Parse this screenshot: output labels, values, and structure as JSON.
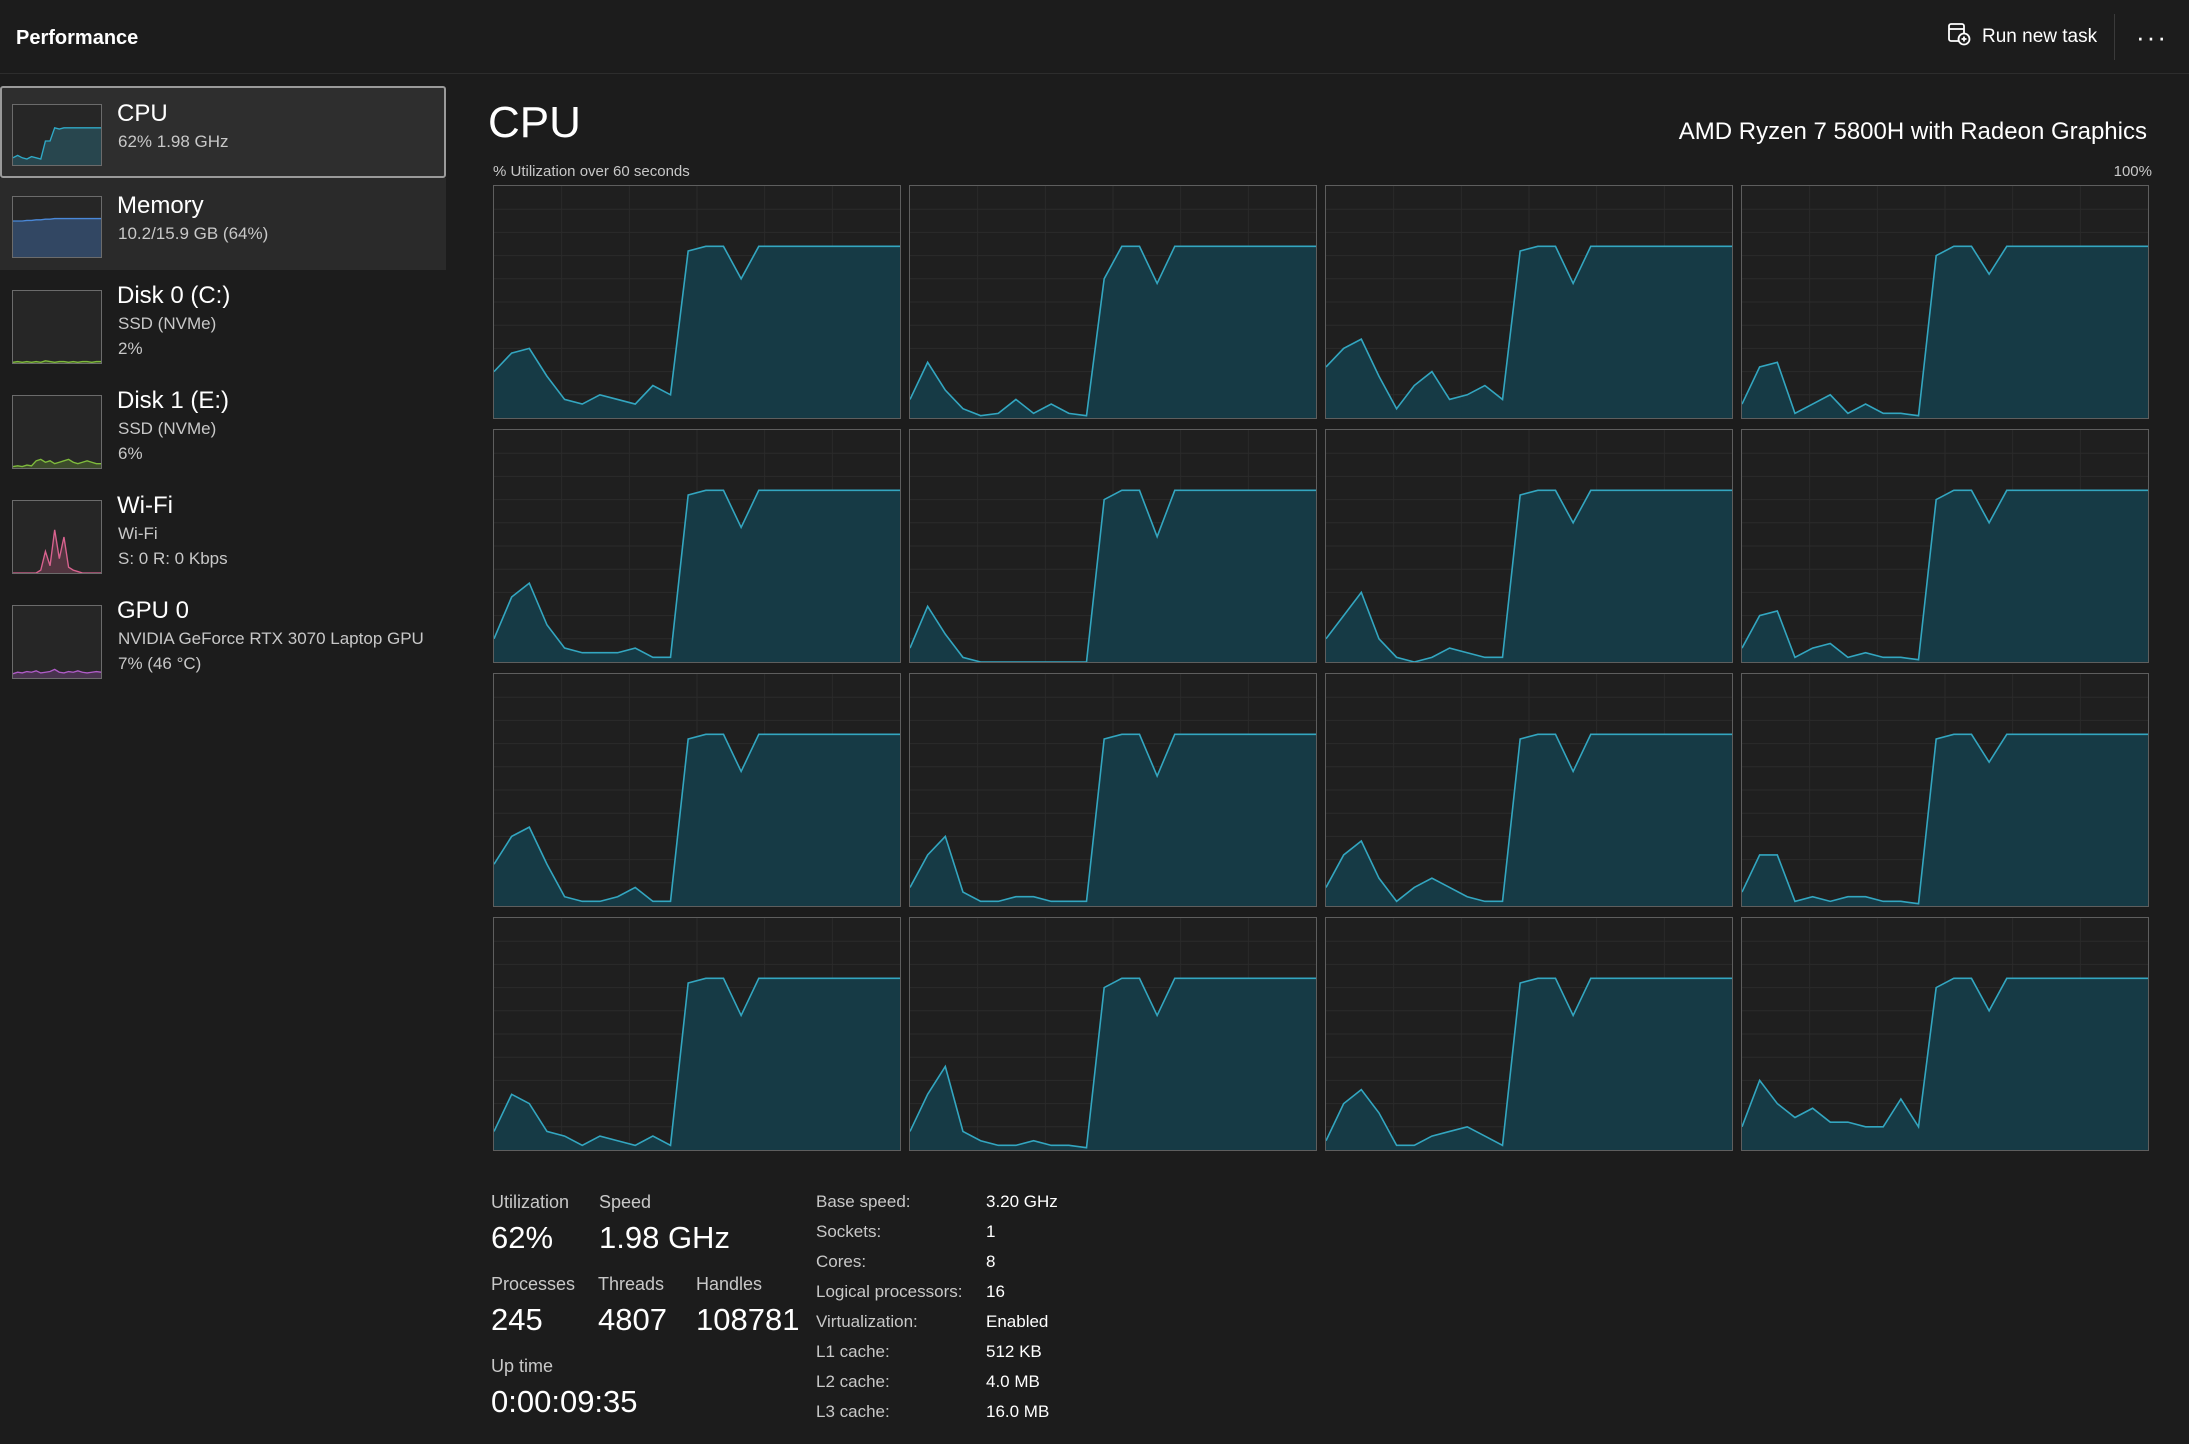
{
  "app": {
    "title": "Performance"
  },
  "toolbar": {
    "run_new_task_label": "Run new task",
    "more_label": "···",
    "run_icon": "run-task-icon"
  },
  "sidebar": {
    "items": [
      {
        "name": "CPU",
        "sub1": "62%  1.98 GHz",
        "sub2": "",
        "color": "#2fa9c6"
      },
      {
        "name": "Memory",
        "sub1": "10.2/15.9 GB (64%)",
        "sub2": "",
        "color": "#4a88d8"
      },
      {
        "name": "Disk 0 (C:)",
        "sub1": "SSD (NVMe)",
        "sub2": "2%",
        "color": "#7fbb3c"
      },
      {
        "name": "Disk 1 (E:)",
        "sub1": "SSD (NVMe)",
        "sub2": "6%",
        "color": "#7fbb3c"
      },
      {
        "name": "Wi-Fi",
        "sub1": "Wi-Fi",
        "sub2": "S: 0  R: 0 Kbps",
        "color": "#d9628f"
      },
      {
        "name": "GPU 0",
        "sub1": "NVIDIA GeForce RTX 3070 Laptop GPU",
        "sub2": "7%  (46 °C)",
        "color": "#b05cc8"
      }
    ]
  },
  "main": {
    "title": "CPU",
    "cpu_model": "AMD Ryzen 7 5800H with Radeon Graphics",
    "util_caption": "% Utilization over 60 seconds",
    "util_max": "100%",
    "accent": "#33a6c0",
    "fill": "#163a45"
  },
  "stats": {
    "utilization_label": "Utilization",
    "utilization": "62%",
    "speed_label": "Speed",
    "speed": "1.98 GHz",
    "processes_label": "Processes",
    "processes": "245",
    "threads_label": "Threads",
    "threads": "4807",
    "handles_label": "Handles",
    "handles": "108781",
    "uptime_label": "Up time",
    "uptime": "0:00:09:35"
  },
  "specs": [
    {
      "label": "Base speed:",
      "value": "3.20 GHz"
    },
    {
      "label": "Sockets:",
      "value": "1"
    },
    {
      "label": "Cores:",
      "value": "8"
    },
    {
      "label": "Logical processors:",
      "value": "16"
    },
    {
      "label": "Virtualization:",
      "value": "Enabled"
    },
    {
      "label": "L1 cache:",
      "value": "512 KB"
    },
    {
      "label": "L2 cache:",
      "value": "4.0 MB"
    },
    {
      "label": "L3 cache:",
      "value": "16.0 MB"
    }
  ],
  "chart_data": {
    "type": "area",
    "ylim": [
      0,
      100
    ],
    "x_range": [
      0,
      60
    ],
    "cores": 16,
    "series": [
      {
        "values": [
          20,
          28,
          30,
          18,
          8,
          6,
          10,
          8,
          6,
          14,
          10,
          72,
          74,
          74,
          60,
          74,
          74,
          74,
          74,
          74,
          74,
          74,
          74,
          74
        ]
      },
      {
        "values": [
          8,
          24,
          12,
          4,
          1,
          2,
          8,
          2,
          6,
          2,
          1,
          60,
          74,
          74,
          58,
          74,
          74,
          74,
          74,
          74,
          74,
          74,
          74,
          74
        ]
      },
      {
        "values": [
          22,
          30,
          34,
          18,
          4,
          14,
          20,
          8,
          10,
          14,
          8,
          72,
          74,
          74,
          58,
          74,
          74,
          74,
          74,
          74,
          74,
          74,
          74,
          74
        ]
      },
      {
        "values": [
          6,
          22,
          24,
          2,
          6,
          10,
          2,
          6,
          2,
          2,
          1,
          70,
          74,
          74,
          62,
          74,
          74,
          74,
          74,
          74,
          74,
          74,
          74,
          74
        ]
      },
      {
        "values": [
          10,
          28,
          34,
          16,
          6,
          4,
          4,
          4,
          6,
          2,
          2,
          72,
          74,
          74,
          58,
          74,
          74,
          74,
          74,
          74,
          74,
          74,
          74,
          74
        ]
      },
      {
        "values": [
          6,
          24,
          12,
          2,
          0,
          0,
          0,
          0,
          0,
          0,
          0,
          70,
          74,
          74,
          54,
          74,
          74,
          74,
          74,
          74,
          74,
          74,
          74,
          74
        ]
      },
      {
        "values": [
          10,
          20,
          30,
          10,
          2,
          0,
          2,
          6,
          4,
          2,
          2,
          72,
          74,
          74,
          60,
          74,
          74,
          74,
          74,
          74,
          74,
          74,
          74,
          74
        ]
      },
      {
        "values": [
          6,
          20,
          22,
          2,
          6,
          8,
          2,
          4,
          2,
          2,
          1,
          70,
          74,
          74,
          60,
          74,
          74,
          74,
          74,
          74,
          74,
          74,
          74,
          74
        ]
      },
      {
        "values": [
          18,
          30,
          34,
          18,
          4,
          2,
          2,
          4,
          8,
          2,
          2,
          72,
          74,
          74,
          58,
          74,
          74,
          74,
          74,
          74,
          74,
          74,
          74,
          74
        ]
      },
      {
        "values": [
          8,
          22,
          30,
          6,
          2,
          2,
          4,
          4,
          2,
          2,
          2,
          72,
          74,
          74,
          56,
          74,
          74,
          74,
          74,
          74,
          74,
          74,
          74,
          74
        ]
      },
      {
        "values": [
          8,
          22,
          28,
          12,
          2,
          8,
          12,
          8,
          4,
          2,
          2,
          72,
          74,
          74,
          58,
          74,
          74,
          74,
          74,
          74,
          74,
          74,
          74,
          74
        ]
      },
      {
        "values": [
          6,
          22,
          22,
          2,
          4,
          2,
          4,
          4,
          2,
          2,
          1,
          72,
          74,
          74,
          62,
          74,
          74,
          74,
          74,
          74,
          74,
          74,
          74,
          74
        ]
      },
      {
        "values": [
          8,
          24,
          20,
          8,
          6,
          2,
          6,
          4,
          2,
          6,
          2,
          72,
          74,
          74,
          58,
          74,
          74,
          74,
          74,
          74,
          74,
          74,
          74,
          74
        ]
      },
      {
        "values": [
          8,
          24,
          36,
          8,
          4,
          2,
          2,
          4,
          2,
          2,
          1,
          70,
          74,
          74,
          58,
          74,
          74,
          74,
          74,
          74,
          74,
          74,
          74,
          74
        ]
      },
      {
        "values": [
          4,
          20,
          26,
          16,
          2,
          2,
          6,
          8,
          10,
          6,
          2,
          72,
          74,
          74,
          58,
          74,
          74,
          74,
          74,
          74,
          74,
          74,
          74,
          74
        ]
      },
      {
        "values": [
          10,
          30,
          20,
          14,
          18,
          12,
          12,
          10,
          10,
          22,
          10,
          70,
          74,
          74,
          60,
          74,
          74,
          74,
          74,
          74,
          74,
          74,
          74,
          74
        ]
      }
    ],
    "sidebar_thumbs": {
      "cpu": [
        12,
        16,
        12,
        10,
        14,
        12,
        10,
        40,
        40,
        62,
        60,
        62,
        62,
        62,
        62,
        62,
        62,
        62,
        62,
        62
      ],
      "memory": [
        60,
        60,
        60,
        61,
        61,
        62,
        62,
        63,
        63,
        64,
        64,
        64,
        64,
        64,
        64,
        64,
        64,
        64,
        64,
        64
      ],
      "disk0": [
        1,
        2,
        1,
        2,
        1,
        2,
        1,
        3,
        2,
        1,
        2,
        2,
        1,
        2,
        1,
        2,
        2,
        1,
        2,
        2
      ],
      "disk1": [
        2,
        3,
        2,
        4,
        3,
        10,
        12,
        8,
        10,
        6,
        8,
        10,
        12,
        8,
        6,
        8,
        10,
        8,
        6,
        6
      ],
      "wifi": [
        0,
        0,
        0,
        0,
        0,
        0,
        4,
        30,
        10,
        60,
        20,
        50,
        8,
        4,
        2,
        0,
        0,
        0,
        0,
        0
      ],
      "gpu0": [
        6,
        8,
        7,
        9,
        8,
        10,
        7,
        8,
        9,
        12,
        8,
        7,
        9,
        8,
        10,
        8,
        7,
        8,
        9,
        8
      ]
    }
  }
}
